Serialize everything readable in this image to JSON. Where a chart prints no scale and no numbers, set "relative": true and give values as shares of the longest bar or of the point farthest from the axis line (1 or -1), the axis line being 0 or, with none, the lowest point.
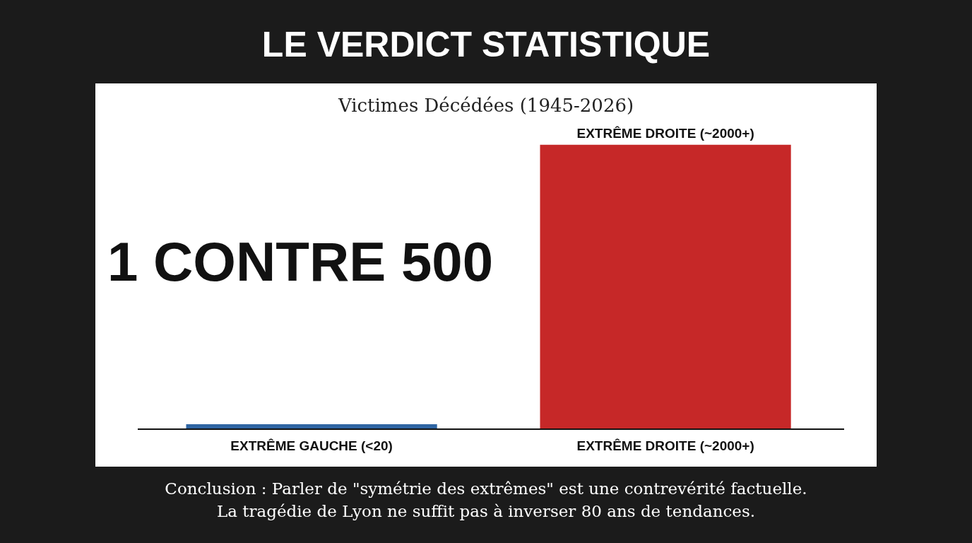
{
  "chart_data": {
    "type": "bar",
    "title": "LE VERDICT STATISTIQUE",
    "subtitle": "Victimes Décédées (1945-2026)",
    "categories": [
      "EXTRÊME GAUCHE (<20)",
      "EXTRÊME DROITE (~2000+)"
    ],
    "relative": true,
    "series": [
      {
        "values": [
          0.017,
          1
        ],
        "colors": [
          "#2f65a3",
          "#c62828"
        ]
      }
    ],
    "value_labels": [
      null,
      "EXTRÊME DROITE (~2000+)"
    ],
    "annotations": [
      {
        "text": "1 CONTRE 500"
      },
      {
        "text": "Conclusion : Parler de \"symétrie des extrêmes\" est une contrevérité factuelle."
      },
      {
        "text": "La tragédie de Lyon ne suffit pas à inverser 80 ans de tendances."
      }
    ]
  }
}
